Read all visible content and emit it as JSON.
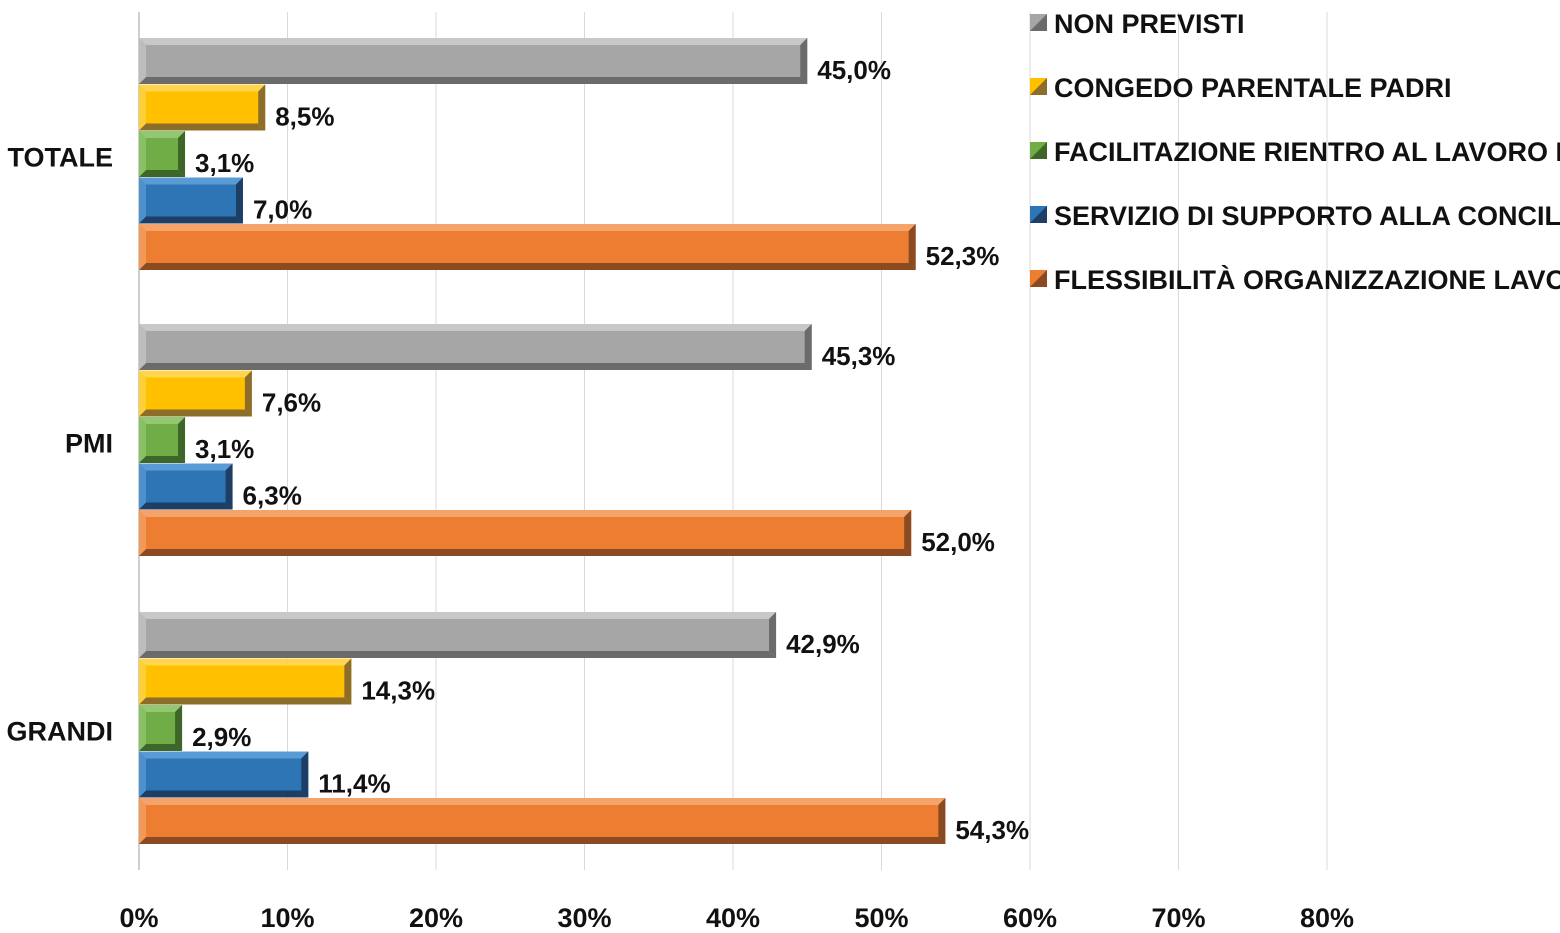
{
  "chart_data": {
    "type": "bar",
    "orientation": "horizontal",
    "categories": [
      "TOTALE",
      "PMI",
      "GRANDI"
    ],
    "series": [
      {
        "name": "NON PREVISTI",
        "values": [
          45.0,
          45.3,
          42.9
        ],
        "labels": [
          "45,0%",
          "45,3%",
          "42,9%"
        ],
        "color": "#A6A6A6",
        "dark": "#6B6B6B",
        "light": "#C8C8C8"
      },
      {
        "name": "CONGEDO PARENTALE PADRI",
        "values": [
          8.5,
          7.6,
          14.3
        ],
        "labels": [
          "8,5%",
          "7,6%",
          "14,3%"
        ],
        "color": "#FFC000",
        "dark": "#8C6D2A",
        "light": "#FFD54F"
      },
      {
        "name": "FACILITAZIONE RIENTRO AL LAVORO DONNE",
        "values": [
          3.1,
          3.1,
          2.9
        ],
        "labels": [
          "3,1%",
          "3,1%",
          "2,9%"
        ],
        "color": "#70AD47",
        "dark": "#3E6628",
        "light": "#93C770"
      },
      {
        "name": "SERVIZIO DI SUPPORTO ALLA CONCILIAZIONE",
        "values": [
          7.0,
          6.3,
          11.4
        ],
        "labels": [
          "7,0%",
          "6,3%",
          "11,4%"
        ],
        "color": "#2E75B6",
        "dark": "#1D3F66",
        "light": "#5B9BD5"
      },
      {
        "name": "FLESSIBILITÀ ORGANIZZAZIONE LAVORO",
        "values": [
          52.3,
          52.0,
          54.3
        ],
        "labels": [
          "52,3%",
          "52,0%",
          "54,3%"
        ],
        "color": "#ED7D31",
        "dark": "#8A4A22",
        "light": "#F4A46A"
      }
    ],
    "xaxis": {
      "ticks": [
        "0%",
        "10%",
        "20%",
        "30%",
        "40%",
        "50%",
        "60%",
        "70%",
        "80%"
      ],
      "min": 0,
      "max": 80
    },
    "grid": true,
    "legend": "top-right"
  }
}
